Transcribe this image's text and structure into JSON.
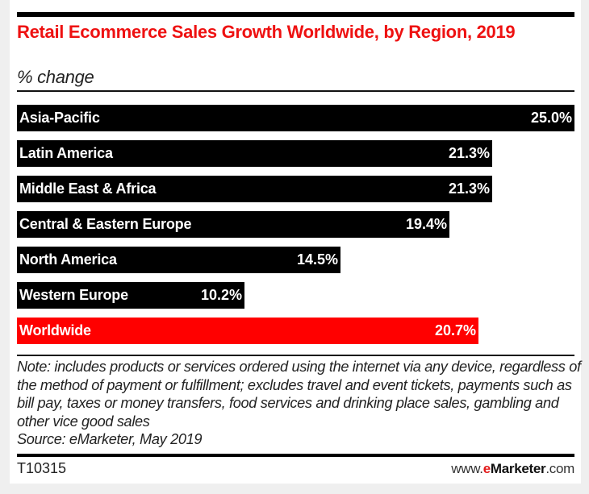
{
  "header": {
    "title": "Retail Ecommerce Sales Growth Worldwide, by Region, 2019",
    "subtitle": "% change"
  },
  "colors": {
    "title": "#ee1111",
    "bar_default": "#000000",
    "bar_highlight": "#ff0000",
    "brand_e": "#e31b1b"
  },
  "chart_data": {
    "type": "bar",
    "orientation": "horizontal",
    "title": "Retail Ecommerce Sales Growth Worldwide, by Region, 2019",
    "subtitle": "% change",
    "xlabel": "",
    "ylabel": "",
    "unit": "%",
    "xlim": [
      0,
      25.0
    ],
    "grid": false,
    "categories": [
      "Asia-Pacific",
      "Latin America",
      "Middle East & Africa",
      "Central & Eastern Europe",
      "North America",
      "Western Europe",
      "Worldwide"
    ],
    "values": [
      25.0,
      21.3,
      21.3,
      19.4,
      14.5,
      10.2,
      20.7
    ],
    "data_labels": [
      "25.0%",
      "21.3%",
      "21.3%",
      "19.4%",
      "14.5%",
      "10.2%",
      "20.7%"
    ],
    "highlight": [
      "Worldwide"
    ]
  },
  "footer": {
    "note": "Note: includes products or services ordered using the internet via any device, regardless of the method of payment or fulfillment; excludes travel and event tickets, payments such as bill pay, taxes or money transfers, food services and drinking place sales, gambling and other vice good sales",
    "source": "Source: eMarketer, May 2019",
    "chart_id": "T10315",
    "brand_prefix": "www.",
    "brand_e": "e",
    "brand_name": "Marketer",
    "brand_suffix": ".com"
  }
}
